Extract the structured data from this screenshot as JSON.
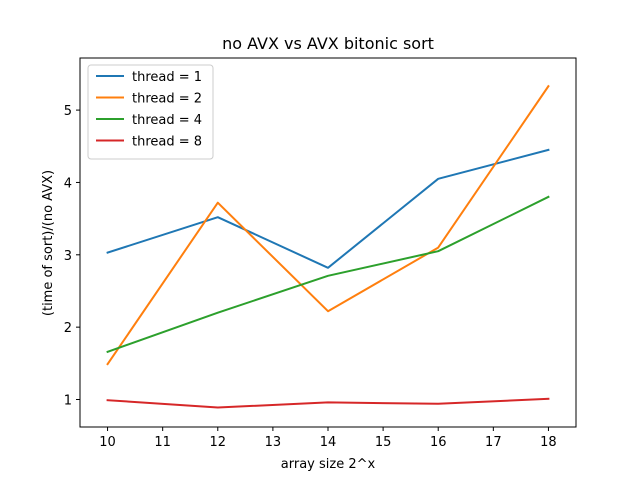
{
  "chart_data": {
    "type": "line",
    "title": "no AVX vs AVX bitonic sort",
    "xlabel": "array size 2^x",
    "ylabel": "(time of sort)/(no AVX)",
    "x": [
      10,
      12,
      14,
      16,
      18
    ],
    "xlim": [
      9.5,
      18.5
    ],
    "ylim": [
      0.62,
      5.72
    ],
    "xticks": [
      10,
      11,
      12,
      13,
      14,
      15,
      16,
      17,
      18
    ],
    "yticks": [
      1,
      2,
      3,
      4,
      5
    ],
    "grid": false,
    "legend_position": "upper-left",
    "series": [
      {
        "name": "thread = 1",
        "color": "#1f77b4",
        "values": [
          3.03,
          3.52,
          2.82,
          4.05,
          4.45
        ]
      },
      {
        "name": "thread = 2",
        "color": "#ff7f0e",
        "values": [
          1.49,
          3.72,
          2.22,
          3.1,
          5.33
        ]
      },
      {
        "name": "thread = 4",
        "color": "#2ca02c",
        "values": [
          1.66,
          2.2,
          2.71,
          3.05,
          3.8
        ]
      },
      {
        "name": "thread = 8",
        "color": "#d62728",
        "values": [
          0.99,
          0.89,
          0.96,
          0.94,
          1.01
        ]
      }
    ]
  }
}
